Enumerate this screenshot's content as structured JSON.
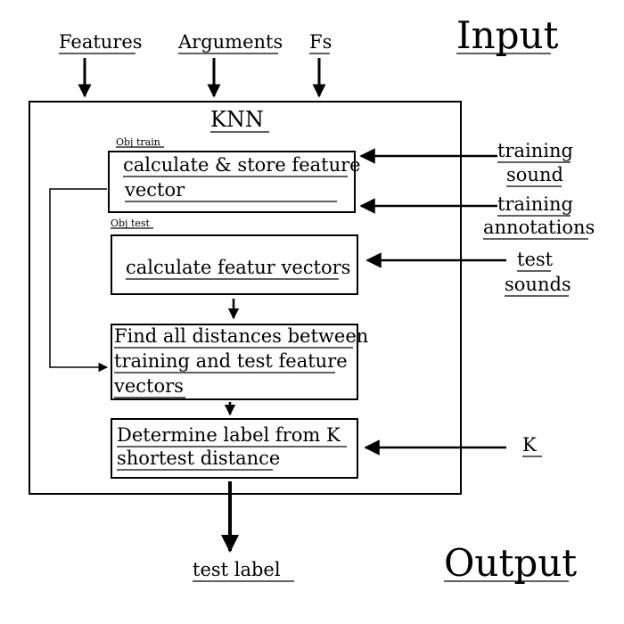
{
  "input_heading": "Input",
  "output_heading": "Output",
  "inputs": {
    "features": "Features",
    "arguments": "Arguments",
    "fs": "Fs"
  },
  "knn": {
    "title": "KNN",
    "obj_train_label": "Obj train",
    "obj_test_label": "Obj test",
    "train_box": [
      "calculate & store feature",
      "vector"
    ],
    "test_box": [
      "calculate featur vectors"
    ],
    "distance_box": [
      "Find all distances between",
      "training and test feature",
      "vectors"
    ],
    "label_box": [
      "Determine label from K",
      "shortest distance"
    ]
  },
  "side_inputs": {
    "training_sound": [
      "training",
      "sound"
    ],
    "training_annotations": [
      "training",
      "annotations"
    ],
    "test_sounds": [
      "test",
      "sounds"
    ],
    "k": "K"
  },
  "output": "test label"
}
